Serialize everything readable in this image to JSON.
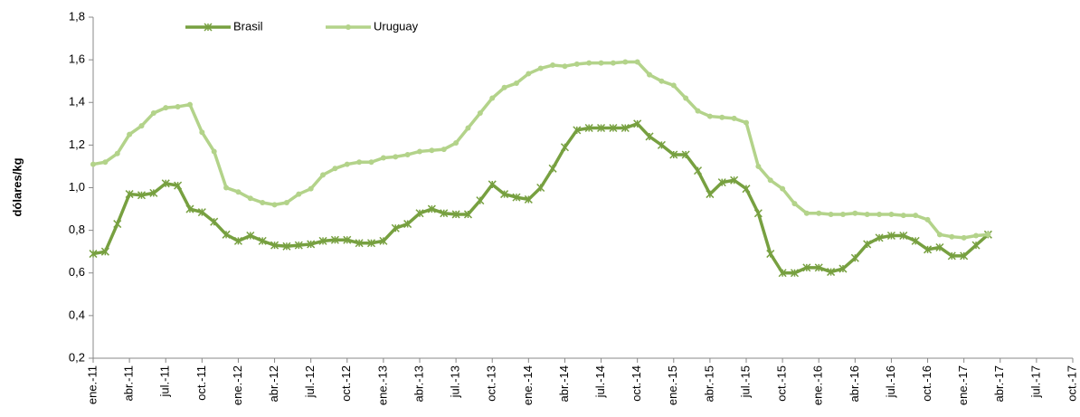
{
  "chart_data": {
    "type": "line",
    "y_label": "dólares/kg",
    "categories": [
      "ene.-11",
      null,
      null,
      "abr.-11",
      null,
      null,
      "jul.-11",
      null,
      null,
      "oct.-11",
      null,
      null,
      "ene.-12",
      null,
      null,
      "abr.-12",
      null,
      null,
      "jul.-12",
      null,
      null,
      "oct.-12",
      null,
      null,
      "ene.-13",
      null,
      null,
      "abr.-13",
      null,
      null,
      "jul.-13",
      null,
      null,
      "oct.-13",
      null,
      null,
      "ene.-14",
      null,
      null,
      "abr.-14",
      null,
      null,
      "jul.-14",
      null,
      null,
      "oct.-14",
      null,
      null,
      "ene.-15",
      null,
      null,
      "abr.-15",
      null,
      null,
      "jul.-15",
      null,
      null,
      "oct.-15",
      null,
      null,
      "ene.-16",
      null,
      null,
      "abr.-16",
      null,
      null,
      "jul.-16",
      null,
      null,
      "oct.-16",
      null,
      null,
      "ene.-17",
      null,
      null,
      "abr.-17",
      null,
      null,
      "jul.-17",
      null,
      null,
      "oct.-17"
    ],
    "series": [
      {
        "name": "Brasil",
        "color": "#77a040",
        "marker": "star",
        "values": [
          0.69,
          0.7,
          0.83,
          0.97,
          0.965,
          0.975,
          1.02,
          1.01,
          0.9,
          0.885,
          0.84,
          0.78,
          0.75,
          0.775,
          0.75,
          0.73,
          0.725,
          0.73,
          0.735,
          0.75,
          0.755,
          0.755,
          0.74,
          0.74,
          0.75,
          0.81,
          0.83,
          0.88,
          0.9,
          0.88,
          0.875,
          0.875,
          0.94,
          1.015,
          0.97,
          0.955,
          0.945,
          1.0,
          1.09,
          1.19,
          1.27,
          1.28,
          1.28,
          1.28,
          1.28,
          1.3,
          1.24,
          1.2,
          1.155,
          1.155,
          1.08,
          0.97,
          1.025,
          1.035,
          0.995,
          0.88,
          0.69,
          0.6,
          0.6,
          0.625,
          0.625,
          0.605,
          0.62,
          0.67,
          0.735,
          0.765,
          0.775,
          0.775,
          0.75,
          0.71,
          0.72,
          0.68,
          0.68,
          0.73,
          0.78,
          null,
          null,
          null,
          null,
          null,
          null,
          null
        ]
      },
      {
        "name": "Uruguay",
        "color": "#b3d38a",
        "marker": "circle",
        "values": [
          1.11,
          1.12,
          1.16,
          1.25,
          1.29,
          1.35,
          1.375,
          1.38,
          1.39,
          1.26,
          1.17,
          1.0,
          0.98,
          0.95,
          0.93,
          0.92,
          0.93,
          0.97,
          0.995,
          1.06,
          1.09,
          1.11,
          1.12,
          1.12,
          1.14,
          1.145,
          1.155,
          1.17,
          1.175,
          1.18,
          1.21,
          1.28,
          1.35,
          1.42,
          1.47,
          1.49,
          1.535,
          1.56,
          1.575,
          1.57,
          1.58,
          1.585,
          1.585,
          1.585,
          1.59,
          1.59,
          1.53,
          1.5,
          1.48,
          1.42,
          1.36,
          1.335,
          1.33,
          1.325,
          1.305,
          1.1,
          1.035,
          0.995,
          0.925,
          0.88,
          0.88,
          0.875,
          0.875,
          0.88,
          0.875,
          0.875,
          0.875,
          0.87,
          0.87,
          0.85,
          0.78,
          0.77,
          0.765,
          0.775,
          0.78,
          null,
          null,
          null,
          null,
          null,
          null,
          null
        ]
      }
    ],
    "ylim": [
      0.2,
      1.8
    ],
    "yticks": [
      {
        "value": 0.2,
        "label": "0,2"
      },
      {
        "value": 0.4,
        "label": "0,4"
      },
      {
        "value": 0.6,
        "label": "0,6"
      },
      {
        "value": 0.8,
        "label": "0,8"
      },
      {
        "value": 1.0,
        "label": "1,0"
      },
      {
        "value": 1.2,
        "label": "1,2"
      },
      {
        "value": 1.4,
        "label": "1,4"
      },
      {
        "value": 1.6,
        "label": "1,6"
      },
      {
        "value": 1.8,
        "label": "1,8"
      }
    ],
    "grid": false
  }
}
